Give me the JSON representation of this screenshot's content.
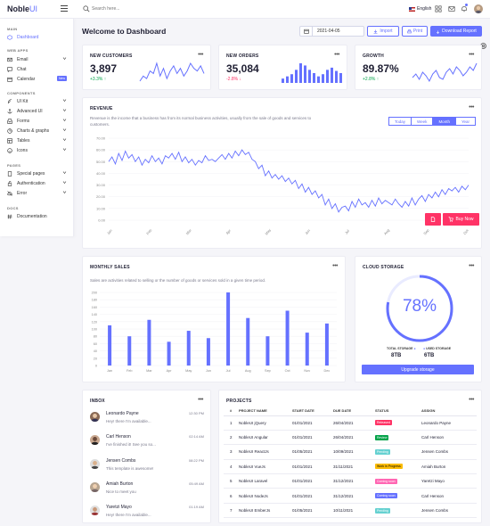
{
  "header": {
    "logo_main": "Noble",
    "logo_sub": "UI",
    "search_placeholder": "Search here...",
    "language": "English"
  },
  "sidebar": {
    "sections": [
      {
        "title": "MAIN",
        "items": [
          {
            "label": "Dashboard"
          }
        ]
      },
      {
        "title": "WEB APPS",
        "items": [
          {
            "label": "Email"
          },
          {
            "label": "Chat"
          },
          {
            "label": "Calendar",
            "badge": "New"
          }
        ]
      },
      {
        "title": "COMPONENTS",
        "items": [
          {
            "label": "UI Kit"
          },
          {
            "label": "Advanced UI"
          },
          {
            "label": "Forms"
          },
          {
            "label": "Charts & graphs"
          },
          {
            "label": "Tables"
          },
          {
            "label": "Icons"
          }
        ]
      },
      {
        "title": "PAGES",
        "items": [
          {
            "label": "Special pages"
          },
          {
            "label": "Authentication"
          },
          {
            "label": "Error"
          }
        ]
      },
      {
        "title": "DOCS",
        "items": [
          {
            "label": "Documentation"
          }
        ]
      }
    ]
  },
  "page": {
    "title": "Welcome to Dashboard",
    "date_value": "2021-04-05",
    "import_label": "Import",
    "print_label": "Print",
    "download_label": "Download Report"
  },
  "stats": [
    {
      "title": "NEW CUSTOMERS",
      "value": "3,897",
      "delta": "+3.3%",
      "trend": "up",
      "color": "#05a34a"
    },
    {
      "title": "NEW ORDERS",
      "value": "35,084",
      "delta": "-2.8%",
      "trend": "down",
      "color": "#ff3366"
    },
    {
      "title": "GROWTH",
      "value": "89.87%",
      "delta": "+2.8%",
      "trend": "up",
      "color": "#05a34a"
    }
  ],
  "revenue": {
    "title": "REVENUE",
    "description": "Revenue is the income that a business has from its normal business activities, usually from the sale of goods and services to customers.",
    "ranges": [
      "Today",
      "Week",
      "Month",
      "Year"
    ],
    "active_range": "Month",
    "buy_label": "Buy Now"
  },
  "monthly_sales": {
    "title": "MONTHLY SALES",
    "description": "Sales are activities related to selling or the number of goods or services sold in a given time period."
  },
  "cloud_storage": {
    "title": "CLOUD STORAGE",
    "percent_label": "78%",
    "percent": 0.78,
    "total_label": "TOTAL STORAGE",
    "total_value": "8TB",
    "used_label": "USED STORAGE",
    "used_value": "6TB",
    "upgrade_label": "Upgrade storage"
  },
  "inbox": {
    "title": "INBOX",
    "messages": [
      {
        "name": "Leonardo Payne",
        "text": "Hey! there I'm available...",
        "time": "12:30 PM"
      },
      {
        "name": "Carl Henson",
        "text": "I've finished it! See you so...",
        "time": "02:14 AM"
      },
      {
        "name": "Jensen Combs",
        "text": "This template is awesome!",
        "time": "08:22 PM"
      },
      {
        "name": "Amiah Burton",
        "text": "Nice to meet you",
        "time": "05:49 AM"
      },
      {
        "name": "Yaretzi Mayo",
        "text": "Hey! there I'm available...",
        "time": "01:19 AM"
      }
    ]
  },
  "projects": {
    "title": "PROJECTS",
    "columns": [
      "#",
      "PROJECT NAME",
      "START DATE",
      "DUE DATE",
      "STATUS",
      "ASSIGN"
    ],
    "rows": [
      {
        "n": "1",
        "name": "NobleUI jQuery",
        "start": "01/01/2021",
        "due": "26/04/2021",
        "status": "Released",
        "color": "#ff3366",
        "assign": "Leonardo Payne"
      },
      {
        "n": "2",
        "name": "NobleUI Angular",
        "start": "01/01/2021",
        "due": "26/04/2021",
        "status": "Review",
        "color": "#05a34a",
        "assign": "Carl Henson"
      },
      {
        "n": "3",
        "name": "NobleUI ReactJs",
        "start": "01/05/2021",
        "due": "10/09/2021",
        "status": "Pending",
        "color": "#66d1d1",
        "assign": "Jensen Combs"
      },
      {
        "n": "4",
        "name": "NobleUI VueJs",
        "start": "01/01/2021",
        "due": "31/11/2021",
        "status": "Work in Progress",
        "color": "#fbbc06",
        "assign": "Amiah Burton"
      },
      {
        "n": "5",
        "name": "NobleUI Laravel",
        "start": "01/01/2021",
        "due": "31/12/2021",
        "status": "Coming soon",
        "color": "#ff66b3",
        "assign": "Yaretzi Mayo"
      },
      {
        "n": "6",
        "name": "NobleUI NodeJs",
        "start": "01/01/2021",
        "due": "31/12/2021",
        "status": "Coming soon",
        "color": "#6571ff",
        "assign": "Carl Henson"
      },
      {
        "n": "7",
        "name": "NobleUI EmberJs",
        "start": "01/05/2021",
        "due": "10/11/2021",
        "status": "Pending",
        "color": "#66d1d1",
        "assign": "Jensen Combs"
      }
    ]
  },
  "chart_data": [
    {
      "type": "line",
      "title": "REVENUE",
      "ylim": [
        0,
        70
      ],
      "yticks": [
        "70.00",
        "60.00",
        "50.00",
        "40.00",
        "30.00",
        "20.00",
        "10.00",
        "0.00"
      ],
      "xticks": [
        "Jan",
        "Feb",
        "Mar",
        "Apr",
        "May",
        "Jun",
        "Jul",
        "Aug",
        "Sep",
        "Oct"
      ],
      "series": [
        {
          "values": [
            50,
            54,
            48,
            57,
            51,
            59,
            53,
            56,
            50,
            54,
            47,
            52,
            49,
            55,
            50,
            53,
            48,
            55,
            53,
            57,
            52,
            58,
            50,
            54,
            49,
            52,
            47,
            51,
            49,
            55,
            51,
            52,
            50,
            53,
            56,
            52,
            57,
            53,
            59,
            55,
            60,
            56,
            58,
            52,
            50,
            44,
            47,
            38,
            42,
            36,
            39,
            35,
            38,
            33,
            36,
            31,
            34,
            27,
            31,
            24,
            28,
            22,
            25,
            19,
            22,
            13,
            18,
            10,
            14,
            7,
            11,
            12,
            8,
            16,
            11,
            18,
            13,
            15,
            11,
            17,
            12,
            19,
            14,
            17,
            15,
            13,
            18,
            14,
            11,
            16,
            12,
            19,
            13,
            18,
            21,
            16,
            22,
            19,
            24,
            20,
            26,
            22,
            27,
            25,
            28,
            24,
            29,
            26,
            30
          ]
        }
      ]
    },
    {
      "type": "bar",
      "title": "MONTHLY SALES",
      "categories": [
        "Jan",
        "Feb",
        "Mar",
        "Apr",
        "May",
        "Jun",
        "Jul",
        "Aug",
        "Sep",
        "Oct",
        "Nov",
        "Dec"
      ],
      "values": [
        110,
        80,
        125,
        65,
        95,
        75,
        200,
        130,
        80,
        150,
        90,
        115
      ],
      "ylim": [
        0,
        200
      ],
      "yticks": [
        "200",
        "180",
        "160",
        "140",
        "120",
        "100",
        "80",
        "60",
        "40",
        "20",
        "0"
      ]
    },
    {
      "type": "line",
      "title": "NEW CUSTOMERS",
      "series": [
        {
          "values": [
            5,
            7,
            6,
            9,
            8,
            12,
            7,
            10,
            6,
            9,
            11,
            8,
            10,
            7,
            9,
            12,
            10,
            9,
            11,
            8
          ]
        }
      ]
    },
    {
      "type": "bar",
      "title": "NEW ORDERS",
      "values": [
        4,
        6,
        8,
        12,
        18,
        16,
        12,
        9,
        6,
        8,
        12,
        14,
        11,
        9
      ]
    },
    {
      "type": "line",
      "title": "GROWTH",
      "series": [
        {
          "values": [
            6,
            8,
            5,
            9,
            7,
            4,
            8,
            10,
            6,
            5,
            9,
            11,
            8,
            12,
            10,
            7,
            9,
            12,
            10,
            14
          ]
        }
      ]
    }
  ],
  "colors": {
    "accent": "#6571ff",
    "danger": "#ff3366",
    "success": "#05a34a"
  }
}
